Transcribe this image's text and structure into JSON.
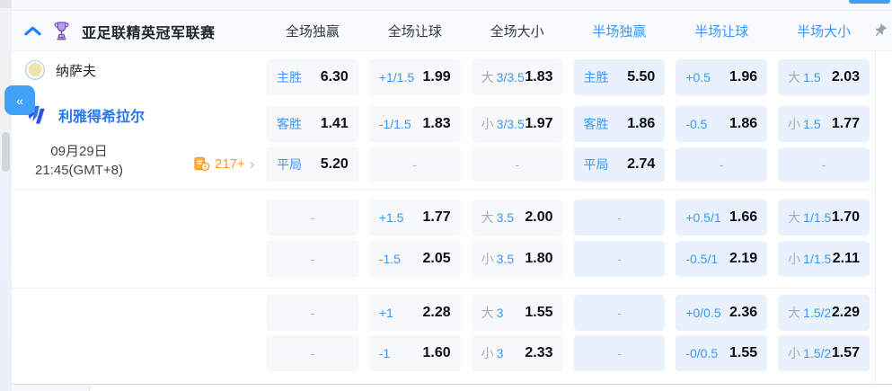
{
  "colors": {
    "accent": "#3b97f5",
    "ft-cell": "#f7f8fa",
    "ht-cell": "#e9f2fc",
    "orange": "#ff9b28"
  },
  "header": {
    "league_title": "亚足联精英冠军联赛",
    "columns": [
      {
        "label": "全场独赢",
        "scope": "ft"
      },
      {
        "label": "全场让球",
        "scope": "ft"
      },
      {
        "label": "全场大小",
        "scope": "ft"
      },
      {
        "label": "半场独赢",
        "scope": "ht"
      },
      {
        "label": "半场让球",
        "scope": "ht"
      },
      {
        "label": "半场大小",
        "scope": "ht"
      }
    ]
  },
  "collapse_tab_label": "«",
  "match": {
    "home_team": "纳萨夫",
    "away_team": "利雅得希拉尔",
    "date": "09月29日",
    "time": "21:45(GMT+8)",
    "markets_count": "217+",
    "more_arrow": "›"
  },
  "odds_groups": [
    {
      "rows": [
        {
          "cells": [
            {
              "label": "主胜",
              "value": "6.30"
            },
            {
              "label": "+1/1.5",
              "value": "1.99"
            },
            {
              "prefix": "大",
              "label": "3/3.5",
              "value": "1.83"
            },
            {
              "label": "主胜",
              "value": "5.50"
            },
            {
              "label": "+0.5",
              "value": "1.96"
            },
            {
              "prefix": "大",
              "label": "1.5",
              "value": "2.03"
            }
          ]
        },
        {
          "cells": [
            {
              "label": "客胜",
              "value": "1.41"
            },
            {
              "label": "-1/1.5",
              "value": "1.83"
            },
            {
              "prefix": "小",
              "label": "3/3.5",
              "value": "1.97"
            },
            {
              "label": "客胜",
              "value": "1.86"
            },
            {
              "label": "-0.5",
              "value": "1.86"
            },
            {
              "prefix": "小",
              "label": "1.5",
              "value": "1.77"
            }
          ]
        },
        {
          "cells": [
            {
              "label": "平局",
              "value": "5.20"
            },
            {
              "empty": true,
              "value": "-"
            },
            {
              "empty": true,
              "value": "-"
            },
            {
              "label": "平局",
              "value": "2.74"
            },
            {
              "empty": true,
              "value": "-"
            },
            {
              "empty": true,
              "value": "-"
            }
          ]
        }
      ]
    },
    {
      "rows": [
        {
          "cells": [
            {
              "empty": true,
              "value": "-"
            },
            {
              "label": "+1.5",
              "value": "1.77"
            },
            {
              "prefix": "大",
              "label": "3.5",
              "value": "2.00"
            },
            {
              "empty": true,
              "value": "-"
            },
            {
              "label": "+0.5/1",
              "value": "1.66"
            },
            {
              "prefix": "大",
              "label": "1/1.5",
              "value": "1.70"
            }
          ]
        },
        {
          "cells": [
            {
              "empty": true,
              "value": "-"
            },
            {
              "label": "-1.5",
              "value": "2.05"
            },
            {
              "prefix": "小",
              "label": "3.5",
              "value": "1.80"
            },
            {
              "empty": true,
              "value": "-"
            },
            {
              "label": "-0.5/1",
              "value": "2.19"
            },
            {
              "prefix": "小",
              "label": "1/1.5",
              "value": "2.11"
            }
          ]
        }
      ]
    },
    {
      "rows": [
        {
          "cells": [
            {
              "empty": true,
              "value": "-"
            },
            {
              "label": "+1",
              "value": "2.28"
            },
            {
              "prefix": "大",
              "label": "3",
              "value": "1.55"
            },
            {
              "empty": true,
              "value": "-"
            },
            {
              "label": "+0/0.5",
              "value": "2.36"
            },
            {
              "prefix": "大",
              "label": "1.5/2",
              "value": "2.29"
            }
          ]
        },
        {
          "cells": [
            {
              "empty": true,
              "value": "-"
            },
            {
              "label": "-1",
              "value": "1.60"
            },
            {
              "prefix": "小",
              "label": "3",
              "value": "2.33"
            },
            {
              "empty": true,
              "value": "-"
            },
            {
              "label": "-0/0.5",
              "value": "1.55"
            },
            {
              "prefix": "小",
              "label": "1.5/2",
              "value": "1.57"
            }
          ]
        }
      ]
    }
  ]
}
